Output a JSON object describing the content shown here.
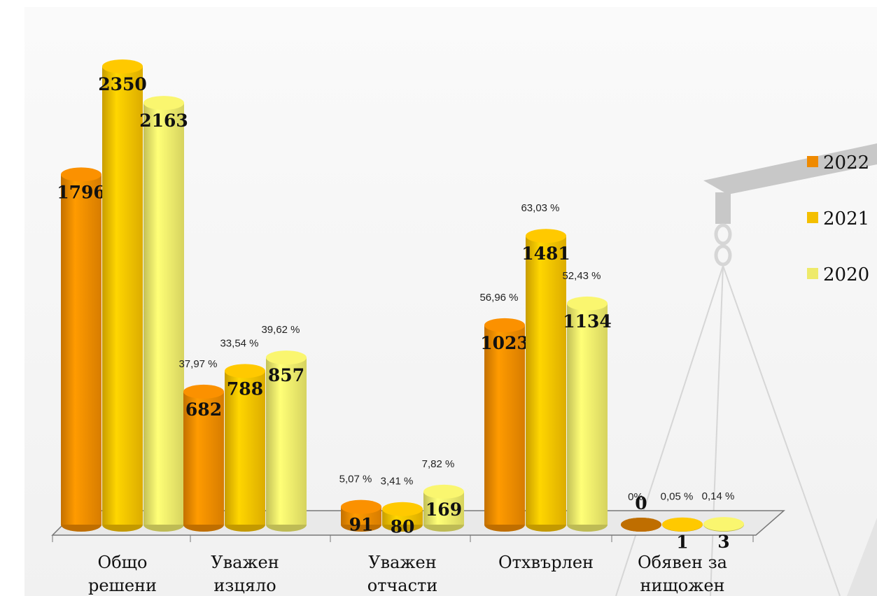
{
  "chart_data": {
    "type": "bar",
    "categories": [
      [
        "Общо",
        "решени"
      ],
      [
        "Уважен",
        "изцяло"
      ],
      [
        "Уважен",
        "отчасти"
      ],
      [
        "Отхвърлен"
      ],
      [
        "Обявен за",
        "нищожен"
      ]
    ],
    "series": [
      {
        "name": "2022",
        "color": "#ef8a00",
        "values": [
          1796,
          682,
          91,
          1023,
          0
        ],
        "share_labels": [
          null,
          "37,97 %",
          "5,07 %",
          "56,96 %",
          "0%"
        ]
      },
      {
        "name": "2021",
        "color": "#f4bf00",
        "values": [
          2350,
          788,
          80,
          1481,
          1
        ],
        "share_labels": [
          null,
          "33,54 %",
          "3,41 %",
          "63,03 %",
          "0,05 %"
        ]
      },
      {
        "name": "2020",
        "color": "#eeea6a",
        "values": [
          2163,
          857,
          169,
          1134,
          3
        ],
        "share_labels": [
          null,
          "39,62 %",
          "7,82 %",
          "52,43 %",
          "0,14 %"
        ]
      }
    ],
    "legend": "right"
  }
}
